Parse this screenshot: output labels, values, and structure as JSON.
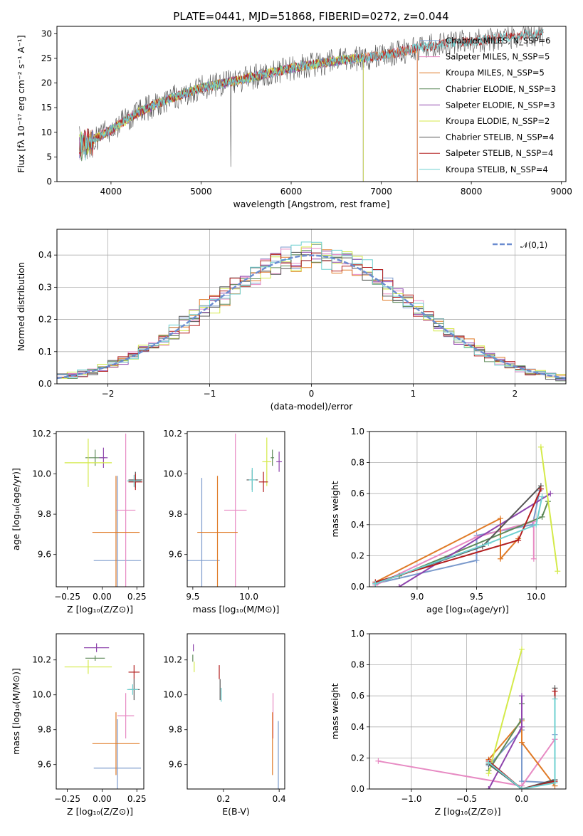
{
  "colors": {
    "chabrier_miles": "#7b9acc",
    "salpeter_miles": "#e78ac3",
    "kroupa_miles": "#e07b28",
    "chabrier_elodie": "#5f8a5a",
    "salpeter_elodie": "#8e44ad",
    "kroupa_elodie": "#d4ea4a",
    "chabrier_stelib": "#555555",
    "salpeter_stelib": "#b21e1e",
    "kroupa_stelib": "#6fd0d0",
    "gaussian": "#6a8cd0",
    "grid": "#b0b0b0"
  },
  "chart_data": [
    {
      "id": "spectrum",
      "type": "line",
      "title": "PLATE=0441, MJD=51868, FIBERID=0272, z=0.044",
      "xlabel": "wavelength [Angstrom, rest frame]",
      "ylabel": "Flux [fλ 10⁻¹⁷ erg cm⁻² s⁻¹ A⁻¹]",
      "xlim": [
        3400,
        9050
      ],
      "ylim": [
        0,
        31.5
      ],
      "xticks": [
        4000,
        5000,
        6000,
        7000,
        8000,
        9000
      ],
      "yticks": [
        0,
        5,
        10,
        15,
        20,
        25,
        30
      ],
      "grid": false,
      "legend_position": "top-right",
      "series": [
        {
          "name": "Chabrier MILES, N_SSP=6",
          "color_key": "chabrier_miles",
          "range": [
            3650,
            7400
          ]
        },
        {
          "name": "Salpeter MILES, N_SSP=5",
          "color_key": "salpeter_miles",
          "range": [
            3650,
            7400
          ]
        },
        {
          "name": "Kroupa MILES, N_SSP=5",
          "color_key": "kroupa_miles",
          "range": [
            3650,
            7400
          ]
        },
        {
          "name": "Chabrier ELODIE, N_SSP=3",
          "color_key": "chabrier_elodie",
          "range": [
            3650,
            6800
          ]
        },
        {
          "name": "Salpeter ELODIE, N_SSP=3",
          "color_key": "salpeter_elodie",
          "range": [
            3650,
            6800
          ]
        },
        {
          "name": "Kroupa ELODIE, N_SSP=2",
          "color_key": "kroupa_elodie",
          "range": [
            3650,
            6800
          ]
        },
        {
          "name": "Chabrier STELIB, N_SSP=4",
          "color_key": "chabrier_stelib",
          "range": [
            3650,
            8800
          ]
        },
        {
          "name": "Salpeter STELIB, N_SSP=4",
          "color_key": "salpeter_stelib",
          "range": [
            3650,
            8800
          ]
        },
        {
          "name": "Kroupa STELIB, N_SSP=4",
          "color_key": "kroupa_stelib",
          "range": [
            3650,
            8800
          ]
        }
      ],
      "continuum": {
        "x": [
          3650,
          3800,
          4000,
          4300,
          4600,
          5000,
          5400,
          6000,
          6500,
          7000,
          7500,
          8000,
          8500,
          8800
        ],
        "y": [
          7,
          8.5,
          10.5,
          14,
          16.5,
          19,
          20.5,
          23,
          24.5,
          25.5,
          27.5,
          28.5,
          29.5,
          30
        ]
      }
    },
    {
      "id": "residuals",
      "type": "step",
      "xlabel": "(data-model)/error",
      "ylabel": "Normed distribution",
      "xlim": [
        -2.5,
        2.5
      ],
      "ylim": [
        0,
        0.48
      ],
      "xticks": [
        -2,
        -1,
        0,
        1,
        2
      ],
      "yticks": [
        0.0,
        0.1,
        0.2,
        0.3,
        0.4
      ],
      "grid": true,
      "legend_position": "top-right",
      "legend_label": "𝒩(0,1)",
      "bin_width": 0.1
    },
    {
      "id": "age_vs_Z",
      "type": "errorbar",
      "xlabel": "Z [log₁₀(Z/Z⊙)]",
      "ylabel": "age  [log₁₀(age/yr)]",
      "xlim": [
        -0.33,
        0.3
      ],
      "ylim": [
        9.44,
        10.21
      ],
      "xticks": [
        -0.25,
        0.0,
        0.25
      ],
      "yticks": [
        9.6,
        9.8,
        10.0,
        10.2
      ],
      "grid": false,
      "points": [
        {
          "c": "chabrier_miles",
          "x": 0.11,
          "xe": 0.17,
          "y": 9.57,
          "ye": 0.42
        },
        {
          "c": "salpeter_miles",
          "x": 0.17,
          "xe": 0.07,
          "y": 9.82,
          "ye": 0.38
        },
        {
          "c": "kroupa_miles",
          "x": 0.1,
          "xe": 0.17,
          "y": 9.71,
          "ye": 0.28
        },
        {
          "c": "chabrier_elodie",
          "x": -0.05,
          "xe": 0.07,
          "y": 10.08,
          "ye": 0.04
        },
        {
          "c": "salpeter_elodie",
          "x": 0.01,
          "xe": 0.03,
          "y": 10.08,
          "ye": 0.05
        },
        {
          "c": "kroupa_elodie",
          "x": -0.1,
          "xe": 0.17,
          "y": 10.055,
          "ye": 0.12
        },
        {
          "c": "chabrier_stelib",
          "x": 0.24,
          "xe": 0.05,
          "y": 9.97,
          "ye": 0.04
        },
        {
          "c": "salpeter_stelib",
          "x": 0.24,
          "xe": 0.05,
          "y": 9.96,
          "ye": 0.04
        },
        {
          "c": "kroupa_stelib",
          "x": 0.23,
          "xe": 0.05,
          "y": 9.965,
          "ye": 0.03
        }
      ]
    },
    {
      "id": "age_vs_mass",
      "type": "errorbar",
      "xlabel": "mass [log₁₀(M/M⊙)]",
      "ylabel": "",
      "xlim": [
        9.45,
        10.32
      ],
      "ylim": [
        9.44,
        10.21
      ],
      "xticks": [
        9.5,
        10.0
      ],
      "yticks": [
        9.6,
        9.8,
        10.0,
        10.2
      ],
      "grid": false,
      "points": [
        {
          "c": "chabrier_miles",
          "x": 9.58,
          "xe": 0.16,
          "y": 9.57,
          "ye": 0.41
        },
        {
          "c": "salpeter_miles",
          "x": 9.88,
          "xe": 0.1,
          "y": 9.82,
          "ye": 0.38
        },
        {
          "c": "kroupa_miles",
          "x": 9.72,
          "xe": 0.18,
          "y": 9.71,
          "ye": 0.28
        },
        {
          "c": "chabrier_elodie",
          "x": 10.21,
          "xe": 0.015,
          "y": 10.08,
          "ye": 0.04
        },
        {
          "c": "salpeter_elodie",
          "x": 10.27,
          "xe": 0.025,
          "y": 10.06,
          "ye": 0.05
        },
        {
          "c": "kroupa_elodie",
          "x": 10.16,
          "xe": 0.04,
          "y": 10.06,
          "ye": 0.12
        },
        {
          "c": "chabrier_stelib",
          "x": 10.03,
          "xe": 0.05,
          "y": 9.97,
          "ye": 0.05
        },
        {
          "c": "salpeter_stelib",
          "x": 10.13,
          "xe": 0.04,
          "y": 9.96,
          "ye": 0.05
        },
        {
          "c": "kroupa_stelib",
          "x": 10.03,
          "xe": 0.03,
          "y": 9.97,
          "ye": 0.06
        }
      ]
    },
    {
      "id": "weight_vs_age",
      "type": "line",
      "xlabel": "age  [log₁₀(age/yr)]",
      "ylabel": "mass weight",
      "xlim": [
        8.6,
        10.25
      ],
      "ylim": [
        0,
        1
      ],
      "xticks": [
        9.0,
        9.5,
        10.0
      ],
      "yticks": [
        0.0,
        0.2,
        0.4,
        0.6,
        0.8,
        1.0
      ],
      "grid": true,
      "series": [
        {
          "c": "chabrier_miles",
          "x": [
            8.65,
            9.5,
            9.5,
            9.97,
            10.03
          ],
          "y": [
            0.02,
            0.17,
            0.33,
            0.4,
            0.62
          ]
        },
        {
          "c": "salpeter_miles",
          "x": [
            8.65,
            9.5,
            9.98,
            9.98
          ],
          "y": [
            0.01,
            0.32,
            0.42,
            0.18
          ]
        },
        {
          "c": "kroupa_miles",
          "x": [
            8.65,
            9.7,
            9.7,
            9.85
          ],
          "y": [
            0.03,
            0.44,
            0.18,
            0.31
          ]
        },
        {
          "c": "chabrier_elodie",
          "x": [
            8.85,
            10.05,
            10.1
          ],
          "y": [
            0.07,
            0.45,
            0.55
          ]
        },
        {
          "c": "salpeter_elodie",
          "x": [
            8.85,
            10.12
          ],
          "y": [
            0.0,
            0.6
          ]
        },
        {
          "c": "kroupa_elodie",
          "x": [
            10.04,
            10.18
          ],
          "y": [
            0.9,
            0.1
          ]
        },
        {
          "c": "chabrier_stelib",
          "x": [
            8.65,
            9.55,
            10.04
          ],
          "y": [
            0.02,
            0.26,
            0.65
          ]
        },
        {
          "c": "salpeter_stelib",
          "x": [
            8.65,
            9.85,
            10.04
          ],
          "y": [
            0.03,
            0.3,
            0.63
          ]
        },
        {
          "c": "kroupa_stelib",
          "x": [
            8.65,
            9.6,
            10.0,
            10.05
          ],
          "y": [
            0.02,
            0.28,
            0.4,
            0.58
          ]
        }
      ]
    },
    {
      "id": "mass_vs_Z",
      "type": "errorbar",
      "xlabel": "Z [log₁₀(Z/Z⊙)]",
      "ylabel": "mass [log₁₀(M/M⊙)]",
      "xlim": [
        -0.33,
        0.3
      ],
      "ylim": [
        9.46,
        10.35
      ],
      "xticks": [
        -0.25,
        0.0,
        0.25
      ],
      "yticks": [
        9.6,
        9.8,
        10.0,
        10.2
      ],
      "grid": false,
      "points": [
        {
          "c": "chabrier_miles",
          "x": 0.11,
          "xe": 0.17,
          "y": 9.58,
          "ye": 0.28
        },
        {
          "c": "salpeter_miles",
          "x": 0.17,
          "xe": 0.06,
          "y": 9.88,
          "ye": 0.13
        },
        {
          "c": "kroupa_miles",
          "x": 0.1,
          "xe": 0.17,
          "y": 9.72,
          "ye": 0.18
        },
        {
          "c": "chabrier_elodie",
          "x": -0.05,
          "xe": 0.07,
          "y": 10.21,
          "ye": 0.015
        },
        {
          "c": "salpeter_elodie",
          "x": -0.04,
          "xe": 0.09,
          "y": 10.27,
          "ye": 0.025
        },
        {
          "c": "kroupa_elodie",
          "x": -0.1,
          "xe": 0.17,
          "y": 10.16,
          "ye": 0.04
        },
        {
          "c": "chabrier_stelib",
          "x": 0.23,
          "xe": 0.04,
          "y": 10.03,
          "ye": 0.06
        },
        {
          "c": "salpeter_stelib",
          "x": 0.23,
          "xe": 0.04,
          "y": 10.13,
          "ye": 0.04
        },
        {
          "c": "kroupa_stelib",
          "x": 0.22,
          "xe": 0.04,
          "y": 10.03,
          "ye": 0.03
        }
      ]
    },
    {
      "id": "mass_vs_ebv",
      "type": "errorbar",
      "xlabel": "E(B-V)",
      "ylabel": "",
      "xlim": [
        0.07,
        0.42
      ],
      "ylim": [
        9.46,
        10.35
      ],
      "xticks": [
        0.2,
        0.4
      ],
      "yticks": [
        9.6,
        9.8,
        10.0,
        10.2
      ],
      "grid": false,
      "points": [
        {
          "c": "chabrier_miles",
          "x": 0.397,
          "xe": 0.0,
          "y": 9.58,
          "ye": 0.27
        },
        {
          "c": "salpeter_miles",
          "x": 0.378,
          "xe": 0.0,
          "y": 9.88,
          "ye": 0.13
        },
        {
          "c": "kroupa_miles",
          "x": 0.376,
          "xe": 0.0,
          "y": 9.72,
          "ye": 0.18
        },
        {
          "c": "chabrier_elodie",
          "x": 0.09,
          "xe": 0.0,
          "y": 10.21,
          "ye": 0.02
        },
        {
          "c": "salpeter_elodie",
          "x": 0.092,
          "xe": 0.0,
          "y": 10.27,
          "ye": 0.02
        },
        {
          "c": "kroupa_elodie",
          "x": 0.095,
          "xe": 0.0,
          "y": 10.16,
          "ye": 0.03
        },
        {
          "c": "chabrier_stelib",
          "x": 0.188,
          "xe": 0.0,
          "y": 10.03,
          "ye": 0.06
        },
        {
          "c": "salpeter_stelib",
          "x": 0.185,
          "xe": 0.0,
          "y": 10.13,
          "ye": 0.04
        },
        {
          "c": "kroupa_stelib",
          "x": 0.192,
          "xe": 0.0,
          "y": 10.0,
          "ye": 0.04
        }
      ]
    },
    {
      "id": "weight_vs_Z",
      "type": "line",
      "xlabel": "Z [log₁₀(Z/Z⊙)]",
      "ylabel": "mass weight",
      "xlim": [
        -1.38,
        0.4
      ],
      "ylim": [
        0,
        1
      ],
      "xticks": [
        -1.0,
        -0.5,
        0.0
      ],
      "yticks": [
        0.0,
        0.2,
        0.4,
        0.6,
        0.8,
        1.0
      ],
      "grid": true,
      "series": [
        {
          "c": "chabrier_miles",
          "x": [
            -0.3,
            0.0,
            0.0,
            0.3,
            0.3
          ],
          "y": [
            0.15,
            0.38,
            0.05,
            0.04,
            0.35
          ]
        },
        {
          "c": "salpeter_miles",
          "x": [
            -1.3,
            0.0,
            0.3,
            0.3
          ],
          "y": [
            0.18,
            0.02,
            0.32,
            0.32
          ]
        },
        {
          "c": "kroupa_miles",
          "x": [
            -0.3,
            0.0,
            0.0,
            0.3
          ],
          "y": [
            0.19,
            0.44,
            0.3,
            0.02
          ]
        },
        {
          "c": "chabrier_elodie",
          "x": [
            -0.3,
            0.0,
            0.0
          ],
          "y": [
            0.12,
            0.45,
            0.55
          ]
        },
        {
          "c": "salpeter_elodie",
          "x": [
            -0.3,
            0.0,
            0.0
          ],
          "y": [
            0.0,
            0.4,
            0.6
          ]
        },
        {
          "c": "kroupa_elodie",
          "x": [
            -0.3,
            0.0
          ],
          "y": [
            0.1,
            0.9
          ]
        },
        {
          "c": "chabrier_stelib",
          "x": [
            -0.3,
            0.0,
            0.3,
            0.3
          ],
          "y": [
            0.16,
            0.0,
            0.06,
            0.65
          ]
        },
        {
          "c": "salpeter_stelib",
          "x": [
            -0.3,
            0.0,
            0.3,
            0.3
          ],
          "y": [
            0.18,
            0.0,
            0.05,
            0.63
          ]
        },
        {
          "c": "kroupa_stelib",
          "x": [
            -0.3,
            0.0,
            0.3,
            0.3
          ],
          "y": [
            0.17,
            0.0,
            0.04,
            0.58
          ]
        }
      ]
    }
  ]
}
